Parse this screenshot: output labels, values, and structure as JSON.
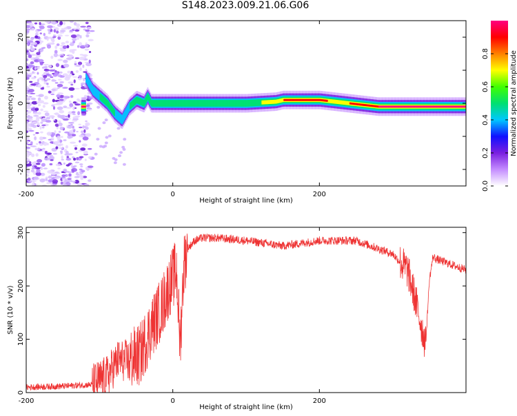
{
  "figure": {
    "title": "S148.2023.009.21.06.G06"
  },
  "chart_data": [
    {
      "type": "heatmap",
      "title": "S148.2023.009.21.06.G06",
      "xlabel": "Height of straight line (km)",
      "ylabel": "Frequency (Hz)",
      "xlim": [
        -200,
        400
      ],
      "ylim": [
        -25,
        25
      ],
      "x_ticks": [
        -200,
        0,
        200
      ],
      "y_ticks": [
        20,
        10,
        0,
        -10,
        -20
      ],
      "grid": false,
      "colorbar": {
        "label": "Normalized spectral amplitude",
        "range": [
          0.0,
          1.0
        ],
        "ticks": [
          0.0,
          0.2,
          0.4,
          0.6,
          0.8
        ],
        "colormap": [
          "#ffffff",
          "#c48cff",
          "#7a1fe0",
          "#1010ff",
          "#00c8ff",
          "#00e070",
          "#40ff00",
          "#ffff00",
          "#ff8000",
          "#ff0000",
          "#ff0080"
        ]
      },
      "ridge": {
        "description_x": [
          -120,
          -110,
          -100,
          -90,
          -80,
          -70,
          -60,
          -50,
          -40,
          -35,
          -30,
          -20,
          0,
          50,
          100,
          140,
          150,
          160,
          200,
          220,
          240,
          260,
          280,
          300,
          350,
          400
        ],
        "y": [
          8,
          4,
          2,
          0,
          -3,
          -5,
          -1,
          1,
          0,
          2,
          0,
          0,
          0,
          0,
          0,
          0.5,
          1,
          1,
          1,
          0.5,
          0,
          -0.5,
          -1,
          -1,
          -1,
          -1
        ],
        "peak_amplitude": [
          0.3,
          0.4,
          0.45,
          0.5,
          0.45,
          0.4,
          0.45,
          0.5,
          0.5,
          0.55,
          0.6,
          0.55,
          0.55,
          0.6,
          0.6,
          0.7,
          0.85,
          0.9,
          0.9,
          0.8,
          0.85,
          0.9,
          0.95,
          0.95,
          0.95,
          0.95
        ]
      }
    },
    {
      "type": "line",
      "xlabel": "Height of straight line (km)",
      "ylabel": "SNR (10 * v/v)",
      "xlim": [
        -200,
        400
      ],
      "ylim": [
        0,
        310
      ],
      "x_ticks": [
        -200,
        0,
        200
      ],
      "y_ticks": [
        0,
        100,
        200,
        300
      ],
      "grid": false,
      "series": [
        {
          "color": "#ee3333",
          "x": [
            -200,
            -150,
            -110,
            -90,
            -75,
            -60,
            -45,
            -30,
            -15,
            -5,
            5,
            10,
            15,
            20,
            30,
            40,
            60,
            100,
            150,
            200,
            250,
            300,
            320,
            330,
            340,
            345,
            350,
            355,
            360,
            380,
            400
          ],
          "y": [
            10,
            12,
            15,
            30,
            60,
            60,
            70,
            120,
            160,
            200,
            230,
            90,
            240,
            270,
            285,
            290,
            290,
            285,
            275,
            285,
            285,
            260,
            230,
            180,
            120,
            90,
            210,
            255,
            250,
            240,
            230
          ]
        }
      ]
    }
  ]
}
